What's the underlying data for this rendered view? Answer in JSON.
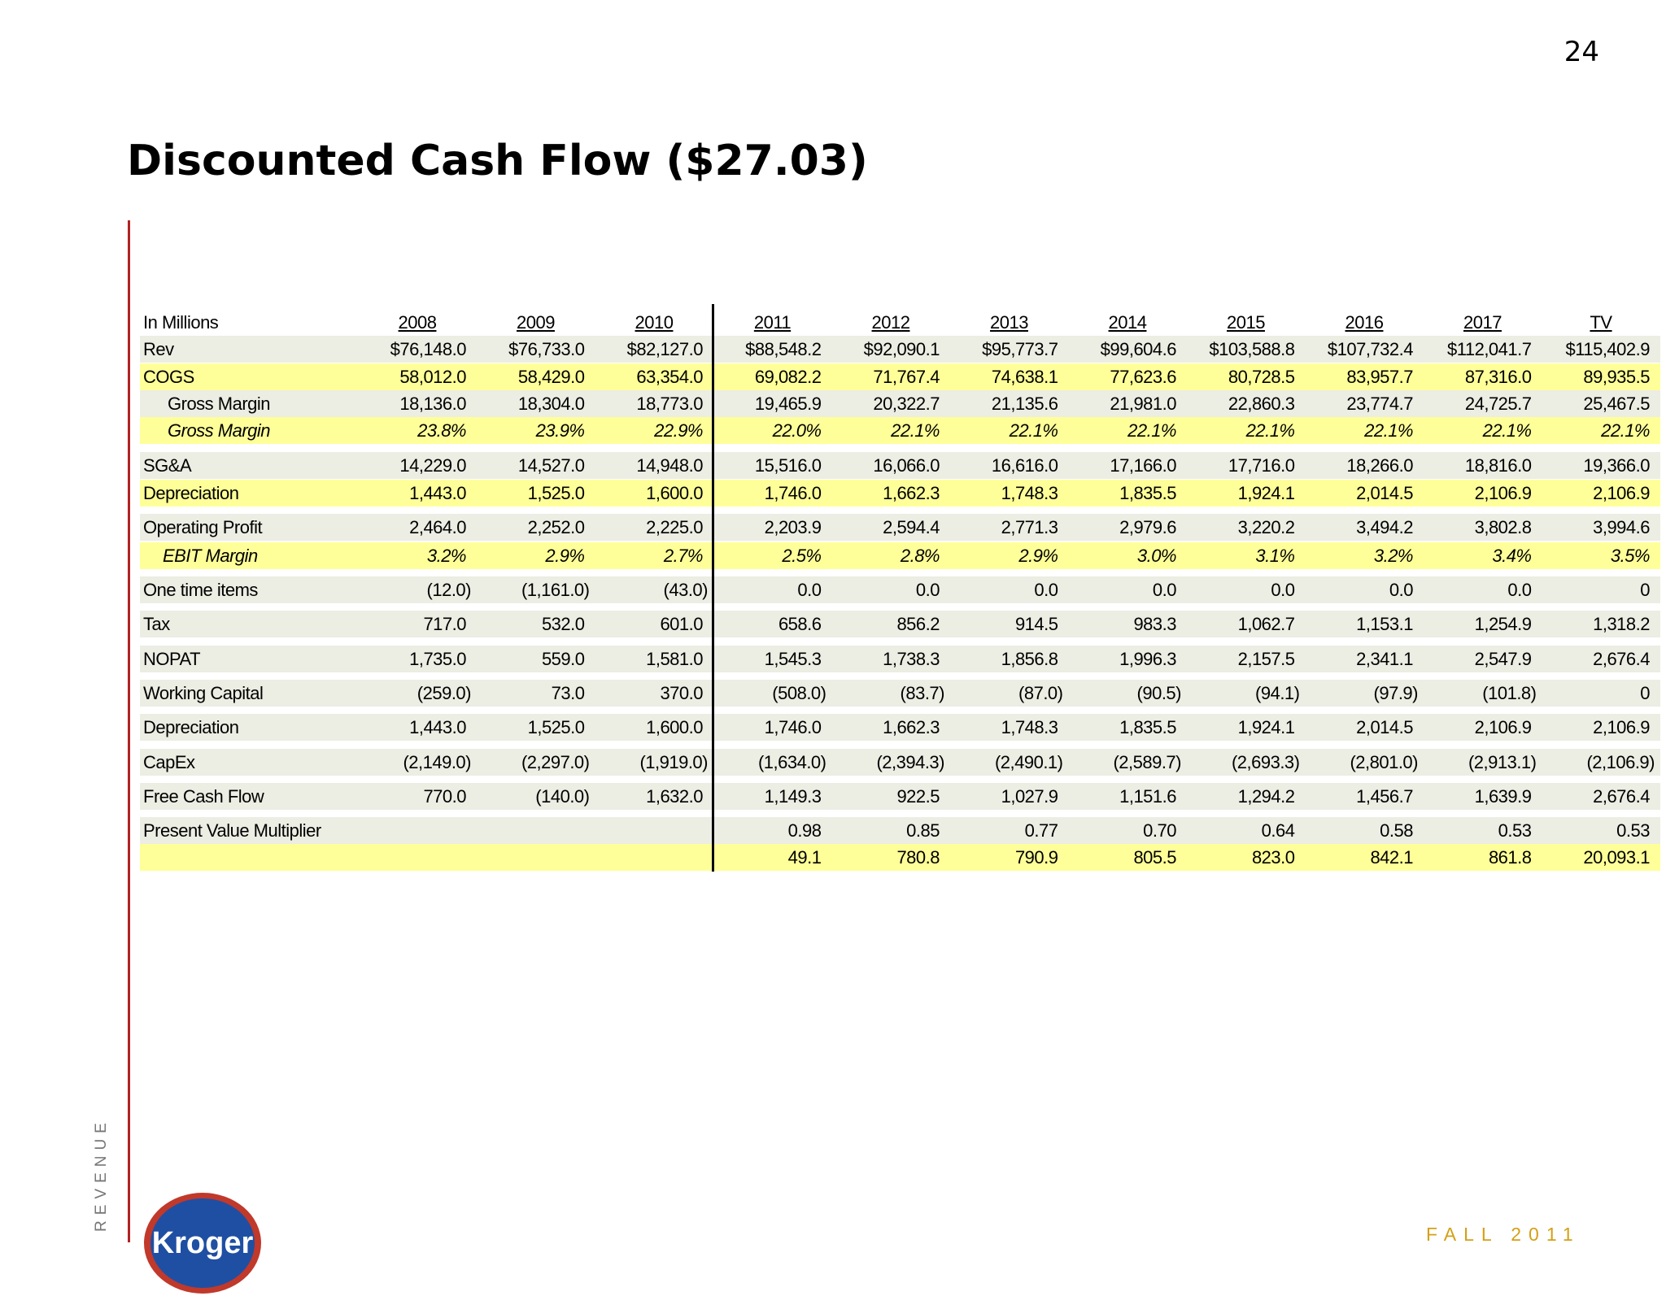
{
  "header": {
    "page_number": "24",
    "title": "Discounted Cash Flow ($27.03)"
  },
  "table": {
    "corner": "In Millions",
    "columns": [
      "2008",
      "2009",
      "2010",
      "2011",
      "2012",
      "2013",
      "2014",
      "2015",
      "2016",
      "2017",
      "TV"
    ],
    "rows": [
      {
        "label": "Rev",
        "values": [
          "$76,148.0",
          "$76,733.0",
          "$82,127.0",
          "$88,548.2",
          "$92,090.1",
          "$95,773.7",
          "$99,604.6",
          "$103,588.8",
          "$107,732.4",
          "$112,041.7",
          "$115,402.9"
        ]
      },
      {
        "label": "COGS",
        "values": [
          "58,012.0",
          "58,429.0",
          "63,354.0",
          "69,082.2",
          "71,767.4",
          "74,638.1",
          "77,623.6",
          "80,728.5",
          "83,957.7",
          "87,316.0",
          "89,935.5"
        ]
      },
      {
        "label": "Gross Margin",
        "values": [
          "18,136.0",
          "18,304.0",
          "18,773.0",
          "19,465.9",
          "20,322.7",
          "21,135.6",
          "21,981.0",
          "22,860.3",
          "23,774.7",
          "24,725.7",
          "25,467.5"
        ]
      },
      {
        "label": "Gross Margin",
        "values": [
          "23.8%",
          "23.9%",
          "22.9%",
          "22.0%",
          "22.1%",
          "22.1%",
          "22.1%",
          "22.1%",
          "22.1%",
          "22.1%",
          "22.1%"
        ]
      },
      {
        "label": "SG&A",
        "values": [
          "14,229.0",
          "14,527.0",
          "14,948.0",
          "15,516.0",
          "16,066.0",
          "16,616.0",
          "17,166.0",
          "17,716.0",
          "18,266.0",
          "18,816.0",
          "19,366.0"
        ]
      },
      {
        "label": "Depreciation",
        "values": [
          "1,443.0",
          "1,525.0",
          "1,600.0",
          "1,746.0",
          "1,662.3",
          "1,748.3",
          "1,835.5",
          "1,924.1",
          "2,014.5",
          "2,106.9",
          "2,106.9"
        ]
      },
      {
        "label": "Operating Profit",
        "values": [
          "2,464.0",
          "2,252.0",
          "2,225.0",
          "2,203.9",
          "2,594.4",
          "2,771.3",
          "2,979.6",
          "3,220.2",
          "3,494.2",
          "3,802.8",
          "3,994.6"
        ]
      },
      {
        "label": "EBIT Margin",
        "values": [
          "3.2%",
          "2.9%",
          "2.7%",
          "2.5%",
          "2.8%",
          "2.9%",
          "3.0%",
          "3.1%",
          "3.2%",
          "3.4%",
          "3.5%"
        ]
      },
      {
        "label": "One time items",
        "values": [
          "(12.0)",
          "(1,161.0)",
          "(43.0)",
          "0.0",
          "0.0",
          "0.0",
          "0.0",
          "0.0",
          "0.0",
          "0.0",
          "0"
        ]
      },
      {
        "label": "Tax",
        "values": [
          "717.0",
          "532.0",
          "601.0",
          "658.6",
          "856.2",
          "914.5",
          "983.3",
          "1,062.7",
          "1,153.1",
          "1,254.9",
          "1,318.2"
        ]
      },
      {
        "label": "NOPAT",
        "values": [
          "1,735.0",
          "559.0",
          "1,581.0",
          "1,545.3",
          "1,738.3",
          "1,856.8",
          "1,996.3",
          "2,157.5",
          "2,341.1",
          "2,547.9",
          "2,676.4"
        ]
      },
      {
        "label": "Working Capital",
        "values": [
          "(259.0)",
          "73.0",
          "370.0",
          "(508.0)",
          "(83.7)",
          "(87.0)",
          "(90.5)",
          "(94.1)",
          "(97.9)",
          "(101.8)",
          "0"
        ]
      },
      {
        "label": "Depreciation",
        "values": [
          "1,443.0",
          "1,525.0",
          "1,600.0",
          "1,746.0",
          "1,662.3",
          "1,748.3",
          "1,835.5",
          "1,924.1",
          "2,014.5",
          "2,106.9",
          "2,106.9"
        ]
      },
      {
        "label": "CapEx",
        "values": [
          "(2,149.0)",
          "(2,297.0)",
          "(1,919.0)",
          "(1,634.0)",
          "(2,394.3)",
          "(2,490.1)",
          "(2,589.7)",
          "(2,693.3)",
          "(2,801.0)",
          "(2,913.1)",
          "(2,106.9)"
        ]
      },
      {
        "label": "Free Cash Flow",
        "values": [
          "770.0",
          "(140.0)",
          "1,632.0",
          "1,149.3",
          "922.5",
          "1,027.9",
          "1,151.6",
          "1,294.2",
          "1,456.7",
          "1,639.9",
          "2,676.4"
        ]
      },
      {
        "label": "Present Value Multiplier",
        "values": [
          null,
          null,
          null,
          "0.98",
          "0.85",
          "0.77",
          "0.70",
          "0.64",
          "0.58",
          "0.53",
          "0.53"
        ]
      },
      {
        "label": null,
        "values": [
          null,
          null,
          null,
          "49.1",
          "780.8",
          "790.9",
          "805.5",
          "823.0",
          "842.1",
          "861.8",
          "20,093.1"
        ]
      }
    ]
  },
  "sidebar": "REVENUE",
  "logo": "Kroger",
  "footer": "FALL 2011"
}
